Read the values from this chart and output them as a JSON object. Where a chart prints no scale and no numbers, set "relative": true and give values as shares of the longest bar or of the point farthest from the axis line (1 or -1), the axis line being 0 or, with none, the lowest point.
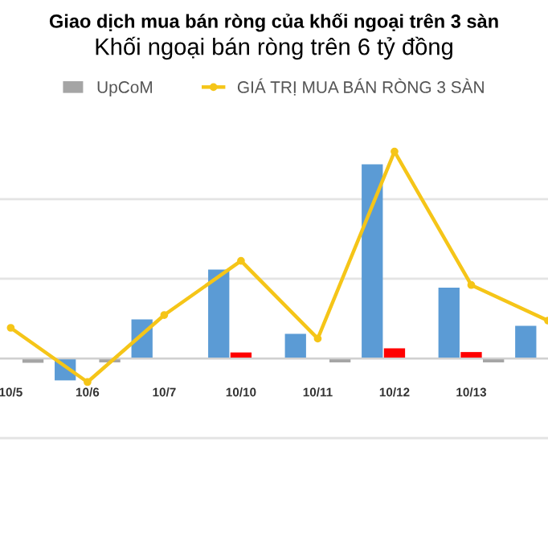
{
  "chart_data": {
    "type": "bar",
    "title": "Giao dịch mua bán ròng của khối ngoại trên 3 sàn",
    "subtitle": "Khối ngoại bán ròng trên 6 tỷ đồng",
    "categories": [
      "10/5",
      "10/6",
      "10/7",
      "10/10",
      "10/11",
      "10/12",
      "10/13",
      null
    ],
    "relative": true,
    "grid": "y",
    "legend": "top",
    "tick_labels": "x",
    "series": [
      {
        "color": "#5b9bd5",
        "values": [
          null,
          -0.106,
          0.189,
          0.43,
          0.119,
          0.938,
          0.342,
          0.158
        ]
      },
      {
        "color": "#ff0000",
        "values": [
          null,
          null,
          null,
          0.029,
          null,
          0.049,
          0.031,
          null
        ]
      },
      {
        "name": "UpCoM",
        "color": "#a5a5a5",
        "values": [
          -0.021,
          -0.019,
          -0.002,
          0,
          -0.019,
          0,
          -0.019,
          null
        ]
      },
      {
        "name": "GIÁ TRỊ MUA BÁN RÒNG 3 SÀN",
        "type": "line",
        "color": "#f5c518",
        "marker": "circle",
        "values": [
          0.148,
          -0.114,
          0.21,
          0.472,
          0.096,
          1,
          0.355,
          0.183
        ]
      }
    ]
  }
}
